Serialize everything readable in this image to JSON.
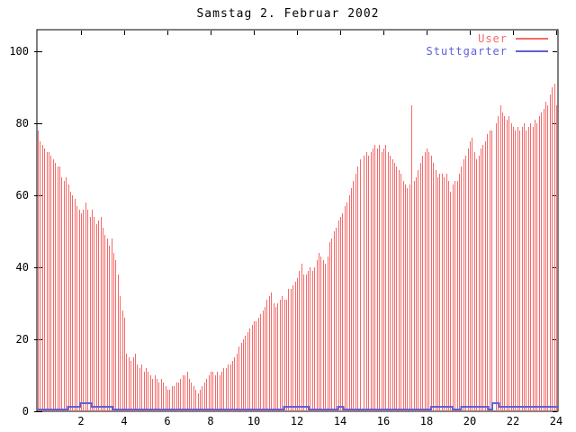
{
  "chart_data": {
    "type": "bar",
    "title": "Samstag 2. Februar 2002",
    "xlabel": "",
    "ylabel": "",
    "background": "#ffffff",
    "grid": false,
    "legend_position": "top-right-inside",
    "x_axis": {
      "min": 0,
      "max": 24,
      "tick_step": 2,
      "ticks": [
        2,
        4,
        6,
        8,
        10,
        12,
        14,
        16,
        18,
        20,
        22,
        24
      ]
    },
    "y_axis": {
      "min": 0,
      "max": 100,
      "tick_step": 20,
      "ticks": [
        0,
        20,
        40,
        60,
        80,
        100
      ]
    },
    "series": [
      {
        "name": "User",
        "style": "impulses",
        "color": "#f56a6a",
        "x_start": 0,
        "x_step": 0.1,
        "values": [
          78,
          75,
          74,
          73,
          72,
          72,
          71,
          70,
          69,
          68,
          68,
          65,
          64,
          65,
          63,
          61,
          60,
          59,
          57,
          56,
          55,
          56,
          58,
          56,
          54,
          56,
          54,
          52,
          53,
          54,
          51,
          49,
          48,
          46,
          48,
          44,
          42,
          38,
          32,
          28,
          26,
          16,
          15,
          14,
          15,
          16,
          13,
          12,
          13,
          11,
          12,
          11,
          10,
          9,
          10,
          9,
          8,
          9,
          8,
          7,
          6,
          6,
          7,
          7,
          8,
          8,
          9,
          10,
          10,
          11,
          9,
          8,
          7,
          6,
          5,
          6,
          7,
          8,
          9,
          10,
          11,
          11,
          10,
          11,
          10,
          11,
          12,
          12,
          13,
          13,
          14,
          15,
          16,
          18,
          19,
          20,
          21,
          22,
          23,
          24,
          25,
          25,
          26,
          27,
          28,
          29,
          31,
          32,
          33,
          30,
          29,
          30,
          31,
          32,
          31,
          31,
          34,
          34,
          35,
          36,
          37,
          39,
          41,
          38,
          38,
          39,
          40,
          39,
          40,
          42,
          44,
          43,
          42,
          41,
          43,
          47,
          48,
          50,
          51,
          53,
          54,
          55,
          57,
          58,
          60,
          62,
          64,
          66,
          68,
          70,
          0,
          71,
          72,
          71,
          72,
          73,
          74,
          73,
          74,
          72,
          73,
          74,
          72,
          71,
          70,
          69,
          68,
          67,
          66,
          64,
          63,
          62,
          63,
          85,
          64,
          65,
          67,
          69,
          71,
          72,
          73,
          72,
          71,
          69,
          67,
          65,
          66,
          66,
          65,
          66,
          64,
          61,
          63,
          64,
          64,
          66,
          68,
          70,
          71,
          73,
          75,
          76,
          72,
          70,
          71,
          73,
          74,
          75,
          77,
          78,
          78,
          0,
          80,
          82,
          85,
          83,
          82,
          81,
          82,
          80,
          79,
          78,
          79,
          78,
          79,
          80,
          78,
          79,
          80,
          79,
          81,
          80,
          82,
          83,
          84,
          86,
          85,
          88,
          90,
          91,
          85
        ]
      },
      {
        "name": "Stuttgarter",
        "style": "steps",
        "color": "#5f5fd8",
        "segments": [
          [
            0,
            1.4,
            0
          ],
          [
            1.4,
            1.95,
            1
          ],
          [
            1.95,
            2.5,
            2
          ],
          [
            2.5,
            3.45,
            1
          ],
          [
            3.45,
            11.4,
            0
          ],
          [
            11.4,
            12.55,
            1
          ],
          [
            12.55,
            13.9,
            0
          ],
          [
            13.9,
            14.15,
            1
          ],
          [
            14.15,
            18.2,
            0
          ],
          [
            18.2,
            19.2,
            1
          ],
          [
            19.2,
            19.6,
            0
          ],
          [
            19.6,
            20.85,
            1
          ],
          [
            20.85,
            21.05,
            0
          ],
          [
            21.05,
            21.35,
            2
          ],
          [
            21.35,
            24,
            1
          ]
        ]
      }
    ]
  }
}
